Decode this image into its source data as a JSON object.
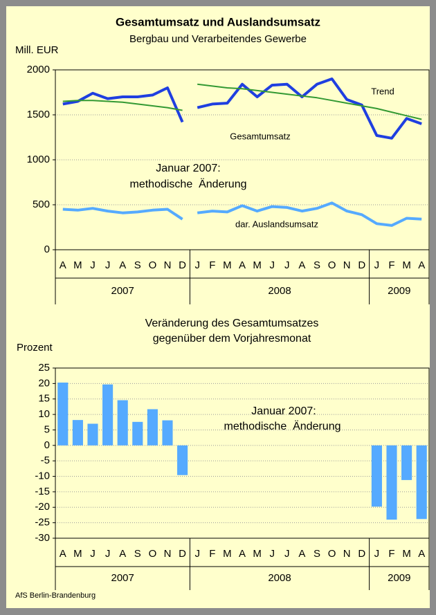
{
  "chart_data": [
    {
      "type": "line",
      "title": "Gesamtumsatz und Auslandsumsatz",
      "subtitle": "Bergbau und Verarbeitendes Gewerbe",
      "y_label": "Mill. EUR",
      "categories": [
        "A",
        "M",
        "J",
        "J",
        "A",
        "S",
        "O",
        "N",
        "D",
        "J",
        "F",
        "M",
        "A",
        "M",
        "J",
        "J",
        "A",
        "S",
        "O",
        "N",
        "D",
        "J",
        "F",
        "M",
        "A"
      ],
      "groups": [
        {
          "label": "2007",
          "size": 9
        },
        {
          "label": "2008",
          "size": 12
        },
        {
          "label": "2009",
          "size": 4
        }
      ],
      "series": [
        {
          "color": "#1f3fe0",
          "width": 4,
          "values": [
            1620,
            1650,
            1740,
            1680,
            1700,
            1700,
            1720,
            1800,
            1420,
            null,
            null,
            null,
            null,
            null,
            null,
            null,
            null,
            null,
            null,
            null,
            null,
            null,
            null,
            null,
            null
          ]
        },
        {
          "name": "Gesamtumsatz",
          "color": "#1f3fe0",
          "width": 4,
          "values": [
            null,
            null,
            null,
            null,
            null,
            null,
            null,
            null,
            null,
            1580,
            1620,
            1630,
            1840,
            1700,
            1830,
            1840,
            1700,
            1840,
            1900,
            1670,
            1610,
            1270,
            1240,
            1460,
            1400
          ]
        },
        {
          "color": "#55aaff",
          "width": 4,
          "values": [
            450,
            440,
            460,
            430,
            410,
            420,
            440,
            450,
            340,
            null,
            null,
            null,
            null,
            null,
            null,
            null,
            null,
            null,
            null,
            null,
            null,
            null,
            null,
            null,
            null
          ]
        },
        {
          "name": "dar. Auslandsumsatz",
          "color": "#55aaff",
          "width": 4,
          "values": [
            null,
            null,
            null,
            null,
            null,
            null,
            null,
            null,
            null,
            410,
            430,
            420,
            490,
            430,
            480,
            470,
            430,
            460,
            520,
            430,
            390,
            290,
            270,
            350,
            340
          ]
        },
        {
          "color": "#339933",
          "width": 2,
          "values": [
            1650,
            1660,
            1660,
            1650,
            1640,
            1620,
            1600,
            1580,
            1550,
            null,
            null,
            null,
            null,
            null,
            null,
            null,
            null,
            null,
            null,
            null,
            null,
            null,
            null,
            null,
            null
          ]
        },
        {
          "name": "Trend",
          "color": "#339933",
          "width": 2,
          "values": [
            null,
            null,
            null,
            null,
            null,
            null,
            null,
            null,
            null,
            1840,
            1820,
            1800,
            1790,
            1770,
            1750,
            1730,
            1710,
            1690,
            1660,
            1630,
            1600,
            1570,
            1530,
            1490,
            1450
          ]
        }
      ],
      "annotations": [
        "Januar 2007:",
        "methodische  Änderung"
      ],
      "ylim": [
        0,
        2000
      ],
      "yticks": [
        0,
        500,
        1000,
        1500,
        2000
      ],
      "grid": true
    },
    {
      "type": "bar",
      "title": [
        "Veränderung des Gesamtumsatzes",
        "gegenüber dem Vorjahresmonat"
      ],
      "y_label": "Prozent",
      "categories": [
        "A",
        "M",
        "J",
        "J",
        "A",
        "S",
        "O",
        "N",
        "D",
        "J",
        "F",
        "M",
        "A",
        "M",
        "J",
        "J",
        "A",
        "S",
        "O",
        "N",
        "D",
        "J",
        "F",
        "M",
        "A"
      ],
      "groups": [
        {
          "label": "2007",
          "size": 9
        },
        {
          "label": "2008",
          "size": 12
        },
        {
          "label": "2009",
          "size": 4
        }
      ],
      "values": [
        20.3,
        8.2,
        7,
        19.7,
        14.6,
        7.6,
        11.7,
        8.1,
        -9.6,
        null,
        null,
        null,
        null,
        null,
        null,
        null,
        null,
        null,
        null,
        null,
        null,
        -19.8,
        -24,
        -11.2,
        -23.8
      ],
      "color": "#55aaff",
      "annotations": [
        "Januar 2007:",
        "methodische  Änderung"
      ],
      "ylim": [
        -30,
        25
      ],
      "yticks": [
        -30,
        -25,
        -20,
        -15,
        -10,
        -5,
        0,
        5,
        10,
        15,
        20,
        25
      ],
      "grid": true
    }
  ],
  "source": "AfS Berlin-Brandenburg"
}
